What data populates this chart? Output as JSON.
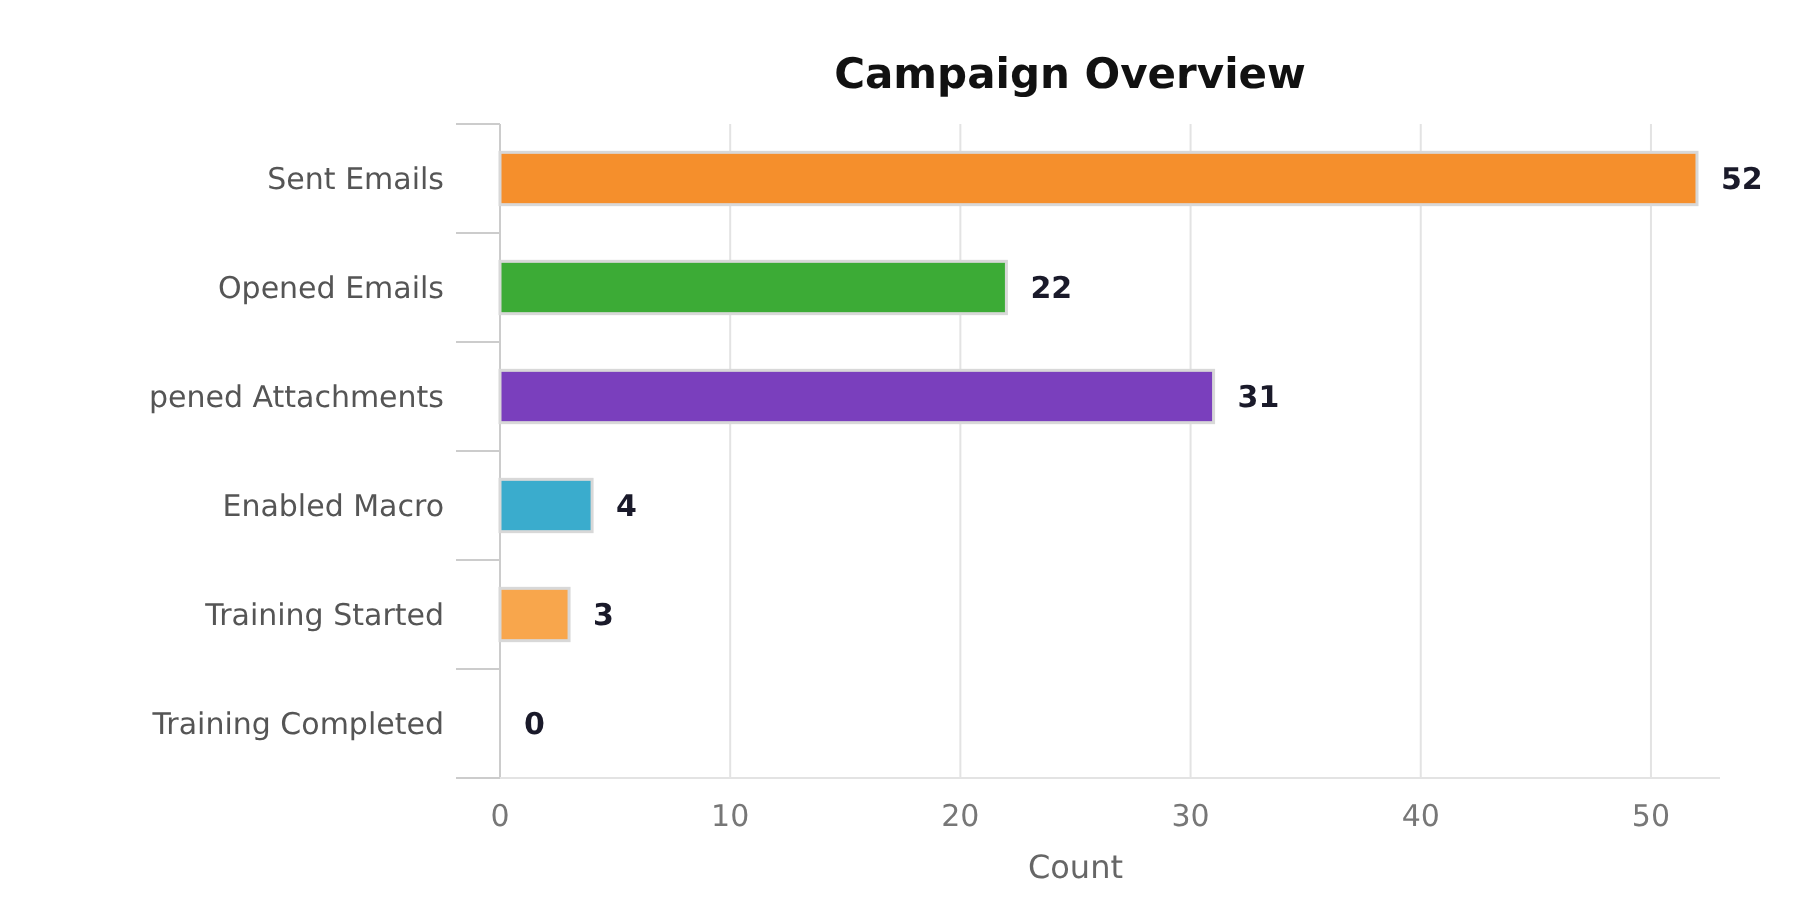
{
  "chart_data": {
    "type": "bar",
    "orientation": "horizontal",
    "title": "Campaign Overview",
    "xlabel": "Count",
    "categories": [
      "Sent Emails",
      "Opened Emails",
      "pened Attachments",
      "Enabled Macro",
      "Training Started",
      "Training Completed"
    ],
    "values": [
      52,
      22,
      31,
      4,
      3,
      0
    ],
    "colors": [
      "#f58f2c",
      "#3cab36",
      "#7a3fbd",
      "#3aaccd",
      "#f8a64c",
      "#f58f2c"
    ],
    "xlim": [
      0,
      53
    ],
    "xticks": [
      0,
      10,
      20,
      30,
      40,
      50
    ],
    "grid": "x",
    "data_labels": true
  }
}
